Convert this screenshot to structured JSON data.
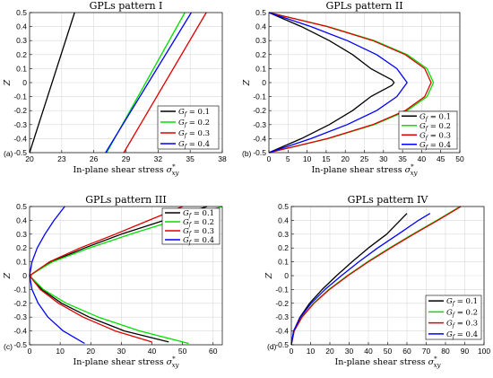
{
  "figure": {
    "description": ""
  },
  "chart_data": [
    {
      "id": "I",
      "type": "line",
      "panel_label": "(a)",
      "title": "GPLs pattern I",
      "xlabel": "In-plane shear stress σ*xy",
      "ylabel": "Z",
      "xlim": [
        20,
        38
      ],
      "ylim": [
        -0.5,
        0.5
      ],
      "xticks": [
        20,
        23,
        26,
        29,
        32,
        35,
        38
      ],
      "yticks": [
        -0.5,
        -0.4,
        -0.3,
        -0.2,
        -0.1,
        0,
        0.1,
        0.2,
        0.3,
        0.4,
        0.5
      ],
      "grid": true,
      "legend_position": "lower-right",
      "series": [
        {
          "name": "G_f = 0.1",
          "color": "#000000",
          "x": [
            20.0,
            24.2
          ],
          "y": [
            -0.5,
            0.5
          ]
        },
        {
          "name": "G_f = 0.2",
          "color": "#00e000",
          "x": [
            27.2,
            34.5
          ],
          "y": [
            -0.5,
            0.5
          ]
        },
        {
          "name": "G_f = 0.3",
          "color": "#e00000",
          "x": [
            28.8,
            36.5
          ],
          "y": [
            -0.5,
            0.5
          ]
        },
        {
          "name": "G_f = 0.4",
          "color": "#0000ff",
          "x": [
            27.1,
            35.1
          ],
          "y": [
            -0.5,
            0.5
          ]
        }
      ]
    },
    {
      "id": "II",
      "type": "line",
      "panel_label": "(b)",
      "title": "GPLs pattern II",
      "xlabel": "In-plane shear stress σ*xy",
      "ylabel": "Z",
      "xlim": [
        0,
        50
      ],
      "ylim": [
        -0.5,
        0.5
      ],
      "xticks": [
        0,
        5,
        10,
        15,
        20,
        25,
        30,
        35,
        40,
        45,
        50
      ],
      "yticks": [
        -0.5,
        -0.4,
        -0.3,
        -0.2,
        -0.1,
        0,
        0.1,
        0.2,
        0.3,
        0.4,
        0.5
      ],
      "grid": true,
      "legend_position": "lower-right",
      "series": [
        {
          "name": "G_f = 0.1",
          "color": "#000000",
          "x": [
            0.0,
            8.5,
            15.8,
            21.9,
            26.7,
            30.1,
            32.2,
            32.8,
            32.2,
            30.1,
            26.7,
            21.9,
            15.8,
            8.5,
            0.0
          ],
          "y": [
            -0.5,
            -0.4,
            -0.3,
            -0.2,
            -0.1,
            -0.05,
            -0.02,
            0.0,
            0.02,
            0.05,
            0.1,
            0.2,
            0.3,
            0.4,
            0.5
          ]
        },
        {
          "name": "G_f = 0.2",
          "color": "#00e000",
          "x": [
            0.0,
            15.5,
            27.6,
            36.2,
            41.4,
            43.1,
            41.4,
            36.2,
            27.6,
            15.5,
            0.0
          ],
          "y": [
            -0.5,
            -0.4,
            -0.3,
            -0.2,
            -0.1,
            0.0,
            0.1,
            0.2,
            0.3,
            0.4,
            0.5
          ]
        },
        {
          "name": "G_f = 0.3",
          "color": "#e00000",
          "x": [
            0.0,
            15.3,
            27.2,
            35.7,
            40.8,
            42.5,
            40.8,
            35.7,
            27.2,
            15.3,
            0.0
          ],
          "y": [
            -0.5,
            -0.4,
            -0.3,
            -0.2,
            -0.1,
            0.0,
            0.1,
            0.2,
            0.3,
            0.4,
            0.5
          ]
        },
        {
          "name": "G_f = 0.4",
          "color": "#0000ff",
          "x": [
            0.0,
            11.0,
            20.5,
            28.2,
            33.5,
            36.2,
            33.5,
            28.2,
            20.5,
            11.0,
            0.0
          ],
          "y": [
            -0.5,
            -0.4,
            -0.3,
            -0.2,
            -0.1,
            0.0,
            0.1,
            0.2,
            0.3,
            0.4,
            0.5
          ]
        }
      ]
    },
    {
      "id": "III",
      "type": "line",
      "panel_label": "(c)",
      "title": "GPLs pattern III",
      "xlabel": "In-plane shear stress σ*xy",
      "ylabel": "Z",
      "xlim": [
        0,
        63
      ],
      "ylim": [
        -0.5,
        0.5
      ],
      "xticks": [
        0,
        10,
        20,
        30,
        40,
        50,
        60
      ],
      "yticks": [
        -0.5,
        -0.4,
        -0.3,
        -0.2,
        -0.1,
        0,
        0.1,
        0.2,
        0.3,
        0.4,
        0.5
      ],
      "grid": true,
      "legend_position": "upper-right",
      "series": [
        {
          "name": "G_f = 0.1",
          "color": "#000000",
          "x": [
            45.5,
            31.0,
            19.5,
            10.5,
            4.0,
            0.0,
            7.0,
            18.0,
            30.0,
            44.0,
            58.0
          ],
          "y": [
            -0.48,
            -0.4,
            -0.3,
            -0.2,
            -0.1,
            0.0,
            0.1,
            0.2,
            0.3,
            0.4,
            0.5
          ]
        },
        {
          "name": "G_f = 0.2",
          "color": "#00e000",
          "x": [
            52.0,
            36.0,
            22.5,
            12.0,
            4.5,
            0.0,
            7.5,
            19.5,
            33.0,
            47.5,
            63.0
          ],
          "y": [
            -0.49,
            -0.4,
            -0.3,
            -0.2,
            -0.1,
            0.0,
            0.1,
            0.2,
            0.3,
            0.4,
            0.5
          ]
        },
        {
          "name": "G_f = 0.3",
          "color": "#e00000",
          "x": [
            40.0,
            28.0,
            17.5,
            9.5,
            3.5,
            0.0,
            6.5,
            16.5,
            28.0,
            39.0,
            50.0
          ],
          "y": [
            -0.48,
            -0.4,
            -0.3,
            -0.2,
            -0.1,
            0.0,
            0.1,
            0.2,
            0.3,
            0.4,
            0.5
          ]
        },
        {
          "name": "G_f = 0.4",
          "color": "#0000ff",
          "x": [
            18.0,
            11.0,
            6.0,
            2.8,
            0.8,
            0.0,
            0.8,
            2.5,
            5.0,
            8.0,
            11.5
          ],
          "y": [
            -0.49,
            -0.4,
            -0.3,
            -0.2,
            -0.1,
            0.0,
            0.1,
            0.2,
            0.3,
            0.4,
            0.5
          ]
        }
      ]
    },
    {
      "id": "IV",
      "type": "line",
      "panel_label": "(d)",
      "title": "GPLs pattern IV",
      "xlabel": "In-plane shear stress σ*xy",
      "ylabel": "Z",
      "xlim": [
        0,
        100
      ],
      "ylim": [
        -0.5,
        0.5
      ],
      "xticks": [
        0,
        10,
        20,
        30,
        40,
        50,
        60,
        70,
        80,
        90,
        100
      ],
      "yticks": [
        -0.5,
        -0.4,
        -0.3,
        -0.2,
        -0.1,
        0,
        0.1,
        0.2,
        0.3,
        0.4,
        0.5
      ],
      "grid": true,
      "legend_position": "lower-right",
      "series": [
        {
          "name": "G_f = 0.1",
          "color": "#000000",
          "x": [
            0.0,
            1.2,
            4.5,
            9.5,
            16.0,
            23.5,
            31.5,
            40.0,
            49.5,
            60.0
          ],
          "y": [
            -0.5,
            -0.4,
            -0.3,
            -0.2,
            -0.1,
            0.0,
            0.1,
            0.2,
            0.3,
            0.45
          ]
        },
        {
          "name": "G_f = 0.2",
          "color": "#00e000",
          "x": [
            0.0,
            1.5,
            5.5,
            11.5,
            19.5,
            29.0,
            39.5,
            51.0,
            63.0,
            75.5,
            87.5
          ],
          "y": [
            -0.5,
            -0.4,
            -0.3,
            -0.2,
            -0.1,
            0.0,
            0.1,
            0.2,
            0.3,
            0.4,
            0.5
          ]
        },
        {
          "name": "G_f = 0.3",
          "color": "#e00000",
          "x": [
            0.0,
            1.5,
            5.6,
            11.7,
            19.8,
            29.4,
            40.0,
            51.5,
            63.5,
            76.0,
            88.0
          ],
          "y": [
            -0.5,
            -0.4,
            -0.3,
            -0.2,
            -0.1,
            0.0,
            0.1,
            0.2,
            0.3,
            0.4,
            0.5
          ]
        },
        {
          "name": "G_f = 0.4",
          "color": "#0000ff",
          "x": [
            0.0,
            1.2,
            4.8,
            10.3,
            17.5,
            26.0,
            35.0,
            44.8,
            55.5,
            66.0,
            72.0
          ],
          "y": [
            -0.5,
            -0.4,
            -0.3,
            -0.2,
            -0.1,
            0.0,
            0.1,
            0.2,
            0.3,
            0.4,
            0.45
          ]
        }
      ]
    }
  ]
}
